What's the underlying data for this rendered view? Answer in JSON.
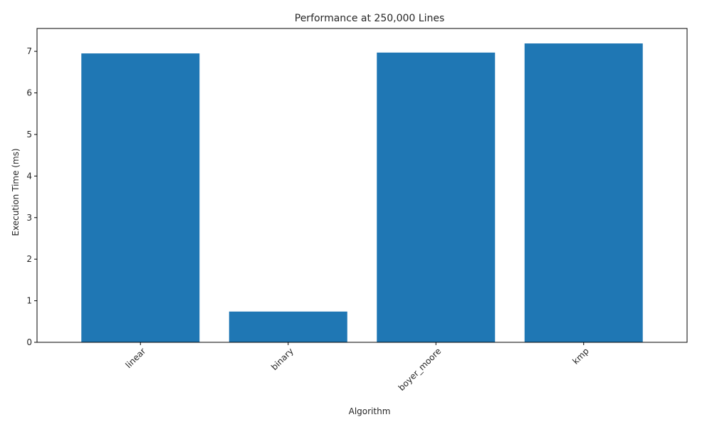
{
  "chart_data": {
    "type": "bar",
    "title": "Performance at 250,000 Lines",
    "xlabel": "Algorithm",
    "ylabel": "Execution Time (ms)",
    "categories": [
      "linear",
      "binary",
      "boyer_moore",
      "kmp"
    ],
    "values": [
      6.95,
      0.74,
      6.97,
      7.19
    ],
    "ylim": [
      0,
      7.55
    ],
    "yticks": [
      0,
      1,
      2,
      3,
      4,
      5,
      6,
      7
    ],
    "ytick_labels": [
      "0",
      "1",
      "2",
      "3",
      "4",
      "5",
      "6",
      "7"
    ],
    "xtick_rotation": 45,
    "bar_color": "#1f77b4",
    "grid": false,
    "legend": "none"
  }
}
